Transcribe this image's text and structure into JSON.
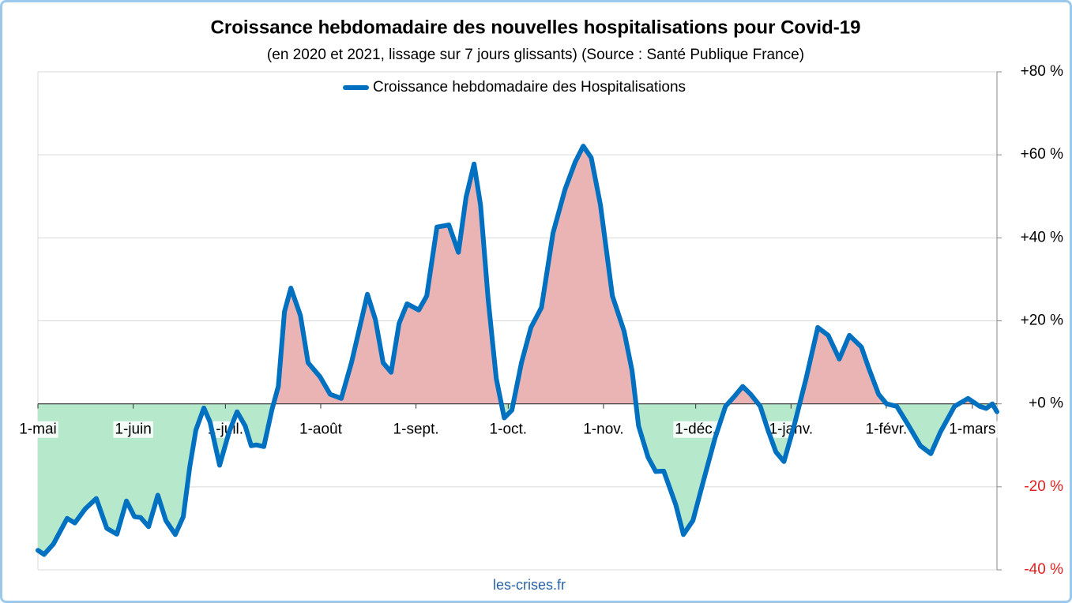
{
  "chart_data": {
    "type": "line",
    "title": "Croissance hebdomadaire des nouvelles hospitalisations pour Covid-19",
    "subtitle": "(en 2020 et 2021, lissage sur 7 jours glissants) (Source : Santé Publique France)",
    "source": "les-crises.fr",
    "positive_fill": "#ebb4b4",
    "negative_fill": "#b6e8cc",
    "grid": true,
    "legend": "top",
    "xlim": [
      0,
      312
    ],
    "xticks": [
      {
        "value": 0,
        "label": "1-mai"
      },
      {
        "value": 31,
        "label": "1-juin"
      },
      {
        "value": 61,
        "label": "1-juil."
      },
      {
        "value": 92,
        "label": "1-août"
      },
      {
        "value": 123,
        "label": "1-sept."
      },
      {
        "value": 153,
        "label": "1-oct."
      },
      {
        "value": 184,
        "label": "1-nov."
      },
      {
        "value": 214,
        "label": "1-déc."
      },
      {
        "value": 245,
        "label": "1-janv."
      },
      {
        "value": 276,
        "label": "1-févr."
      },
      {
        "value": 304,
        "label": "1-mars"
      }
    ],
    "ylim": [
      -40,
      80
    ],
    "yticks": [
      {
        "value": 80,
        "label": "+80 %"
      },
      {
        "value": 60,
        "label": "+60 %"
      },
      {
        "value": 40,
        "label": "+40 %"
      },
      {
        "value": 20,
        "label": "+20 %"
      },
      {
        "value": 0,
        "label": "+0 %"
      },
      {
        "value": -20,
        "label": "-20 %"
      },
      {
        "value": -40,
        "label": "-40 %"
      }
    ],
    "x": [
      0,
      2,
      5,
      9.5,
      12,
      15.4,
      19,
      22.4,
      25.7,
      28.8,
      31.4,
      33.4,
      36,
      39,
      41.6,
      44.7,
      47.3,
      49.4,
      51.4,
      54,
      56,
      59.1,
      62.2,
      64.8,
      67.4,
      69.4,
      71,
      73.5,
      76.1,
      78.2,
      80.2,
      82.3,
      85.4,
      87.9,
      91.8,
      95.1,
      98.7,
      102,
      107.2,
      109.8,
      112.3,
      114.9,
      117.5,
      120.1,
      123.9,
      126.5,
      129.8,
      133.7,
      136.8,
      139.3,
      141.9,
      144,
      146.5,
      149.1,
      151.7,
      154.2,
      157.3,
      160.4,
      163.8,
      167.6,
      171.5,
      174.8,
      177.4,
      180,
      183,
      186.9,
      190.7,
      193.3,
      195.4,
      198.5,
      201,
      203.6,
      207.5,
      210,
      213.1,
      216.5,
      220.3,
      223.7,
      226.7,
      229.3,
      231.9,
      235,
      237.5,
      240.1,
      242.7,
      246,
      249.9,
      253.7,
      257.1,
      260.7,
      264,
      267.9,
      270.4,
      273.5,
      276.1,
      279.4,
      283.3,
      287.1,
      290.5,
      293.6,
      298.2,
      302.6,
      306.4,
      308.5,
      310.5,
      312
    ],
    "series": [
      {
        "name": "Croissance hebdomadaire des Hospitalisations",
        "color": "#0070c0",
        "values": [
          -35.3,
          -36.3,
          -33.8,
          -27.6,
          -28.7,
          -25.3,
          -22.8,
          -30,
          -31.4,
          -23.4,
          -27.2,
          -27.4,
          -29.6,
          -22,
          -28.1,
          -31.5,
          -27.2,
          -15.2,
          -6.3,
          -1,
          -4.4,
          -14.8,
          -6.8,
          -1.9,
          -5.3,
          -10.1,
          -9.9,
          -10.3,
          -1.5,
          4.2,
          22.2,
          27.9,
          21.3,
          9.9,
          6.5,
          2.3,
          1.3,
          9.9,
          26.4,
          20.3,
          9.9,
          7.6,
          19.4,
          24.1,
          22.6,
          26,
          42.6,
          43.1,
          36.5,
          49.8,
          57.8,
          47.9,
          25.1,
          6.1,
          -3.4,
          -1.5,
          9.9,
          18.4,
          23.2,
          41.2,
          51.7,
          58.3,
          62.1,
          59.3,
          47.9,
          26,
          17.5,
          8,
          -5.3,
          -12.9,
          -16.3,
          -16.2,
          -24.3,
          -31.5,
          -28.1,
          -18.6,
          -8.2,
          -0.6,
          1.9,
          4.2,
          2.3,
          -0.6,
          -6.3,
          -11.6,
          -13.9,
          -5.3,
          6.1,
          18.4,
          16.5,
          10.8,
          16.5,
          13.7,
          8.4,
          2.3,
          0,
          -0.6,
          -5.3,
          -10.1,
          -12,
          -6.8,
          -0.6,
          1.3,
          -0.6,
          -1.1,
          0,
          -1.9
        ]
      }
    ]
  }
}
